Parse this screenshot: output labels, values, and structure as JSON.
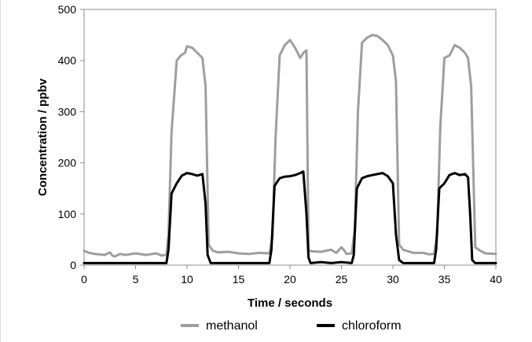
{
  "chart_data": {
    "type": "line",
    "xlabel": "Time / seconds",
    "ylabel": "Concentration / ppbv",
    "xlim": [
      0,
      40
    ],
    "ylim": [
      0,
      500
    ],
    "x_ticks": [
      0,
      5,
      10,
      15,
      20,
      25,
      30,
      35,
      40
    ],
    "y_ticks": [
      0,
      100,
      200,
      300,
      400,
      500
    ],
    "grid": false,
    "legend_position": "bottom",
    "series": [
      {
        "name": "methanol",
        "color": "#9e9e9e",
        "x": [
          0,
          0.5,
          1,
          1.5,
          2,
          2.5,
          2.8,
          3,
          3.5,
          4,
          5,
          6,
          7,
          7.5,
          8,
          8.2,
          8.5,
          9,
          9.4,
          9.8,
          10,
          10.5,
          11,
          11.5,
          11.8,
          12.1,
          12.5,
          13,
          14,
          15,
          16,
          17,
          18,
          18.3,
          18.6,
          19,
          19.5,
          20,
          20.5,
          21,
          21.3,
          21.6,
          21.8,
          22.1,
          23,
          24,
          24.5,
          25,
          25.3,
          25.5,
          26,
          26.3,
          26.6,
          27,
          27.5,
          28,
          28.5,
          29,
          29.5,
          30,
          30.3,
          30.6,
          31,
          32,
          33,
          33.5,
          34,
          34.3,
          34.6,
          35,
          35.5,
          36,
          36.5,
          37,
          37.3,
          37.6,
          38,
          38.5,
          39,
          40
        ],
        "y": [
          28,
          24,
          22,
          21,
          20,
          25,
          18,
          17,
          22,
          20,
          23,
          20,
          23,
          19,
          20,
          60,
          260,
          400,
          410,
          415,
          428,
          425,
          415,
          405,
          350,
          40,
          28,
          25,
          26,
          23,
          22,
          24,
          23,
          55,
          250,
          410,
          430,
          440,
          425,
          405,
          415,
          420,
          30,
          27,
          26,
          30,
          24,
          35,
          28,
          22,
          23,
          70,
          300,
          435,
          445,
          450,
          448,
          440,
          430,
          410,
          360,
          40,
          30,
          24,
          24,
          21,
          22,
          60,
          270,
          405,
          410,
          430,
          425,
          415,
          405,
          350,
          35,
          28,
          23,
          22
        ]
      },
      {
        "name": "chloroform",
        "color": "#000000",
        "x": [
          0,
          2,
          4,
          6,
          8,
          8.2,
          8.5,
          9,
          9.5,
          10,
          10.5,
          11,
          11.5,
          11.8,
          12,
          12.3,
          13,
          15,
          17,
          18,
          18.2,
          18.5,
          19,
          19.5,
          20,
          20.5,
          21,
          21.3,
          21.6,
          21.8,
          22,
          23,
          24,
          25,
          26,
          26.2,
          26.5,
          27,
          27.5,
          28,
          28.5,
          29,
          29.5,
          30,
          30.3,
          30.6,
          31,
          33,
          34,
          34.2,
          34.5,
          35,
          35.5,
          36,
          36.5,
          37,
          37.3,
          37.5,
          37.7,
          38,
          40
        ],
        "y": [
          4,
          4,
          4,
          4,
          4,
          30,
          140,
          160,
          175,
          180,
          178,
          175,
          178,
          120,
          20,
          4,
          4,
          4,
          4,
          4,
          30,
          155,
          170,
          173,
          174,
          176,
          180,
          183,
          100,
          15,
          4,
          6,
          4,
          6,
          4,
          20,
          150,
          170,
          174,
          176,
          178,
          180,
          174,
          160,
          60,
          10,
          4,
          4,
          4,
          30,
          150,
          160,
          176,
          180,
          176,
          178,
          172,
          100,
          10,
          4,
          4
        ]
      }
    ]
  }
}
